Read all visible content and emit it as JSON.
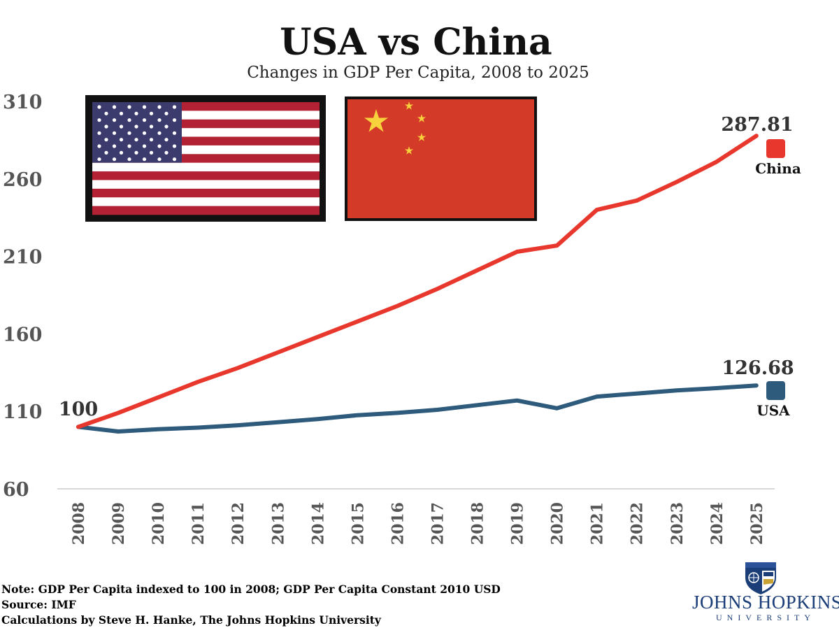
{
  "chart_data": {
    "type": "line",
    "title": "USA vs China",
    "subtitle": "Changes in GDP Per Capita, 2008 to 2025",
    "x": [
      "2008",
      "2009",
      "2010",
      "2011",
      "2012",
      "2013",
      "2014",
      "2015",
      "2016",
      "2017",
      "2018",
      "2019",
      "2020",
      "2021",
      "2022",
      "2023",
      "2024",
      "2025"
    ],
    "y_ticks": [
      "310",
      "260",
      "210",
      "160",
      "110",
      "60"
    ],
    "ylim": [
      60,
      310
    ],
    "series": [
      {
        "name": "China",
        "color": "#e8372c",
        "values": [
          100,
          109,
          119,
          129,
          138,
          148,
          158,
          168,
          178,
          189,
          201,
          213,
          217,
          240,
          246,
          258,
          271,
          287.81
        ]
      },
      {
        "name": "USA",
        "color": "#2e5a7c",
        "values": [
          100,
          97,
          98.5,
          99.5,
          101,
          103,
          105,
          107.5,
          109,
          111,
          114,
          117,
          112,
          119.5,
          121.5,
          123.5,
          125,
          126.68
        ]
      }
    ],
    "start_label": "100",
    "end_labels": {
      "China": "287.81",
      "USA": "126.68"
    },
    "grid": false,
    "legend_placement": "right"
  },
  "notes": {
    "line1": "Note: GDP Per Capita indexed to 100 in 2008; GDP Per Capita Constant 2010 USD",
    "line2": "Source: IMF",
    "line3": "Calculations by Steve H. Hanke, The Johns Hopkins University"
  },
  "logo": {
    "name": "JOHNS HOPKINS",
    "sub": "UNIVERSITY"
  }
}
